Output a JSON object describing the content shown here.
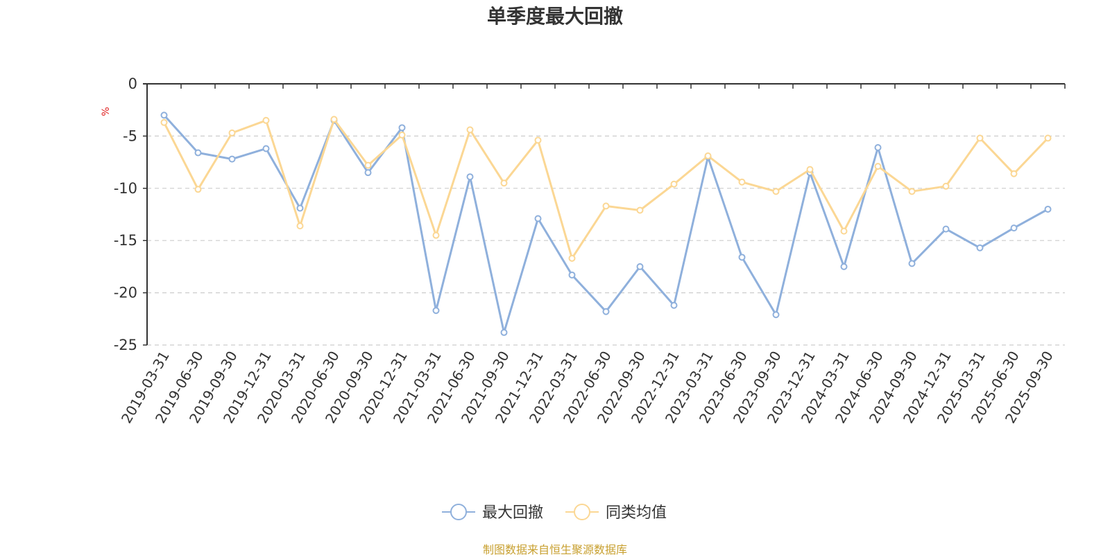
{
  "chart_data": {
    "type": "line",
    "title": "单季度最大回撤",
    "ylabel": "%",
    "xlabel": "",
    "ylim": [
      -25,
      0
    ],
    "yticks": [
      0,
      -5,
      -10,
      -15,
      -20,
      -25
    ],
    "grid": true,
    "legend_position": "bottom-center",
    "categories": [
      "2019-03-31",
      "2019-06-30",
      "2019-09-30",
      "2019-12-31",
      "2020-03-31",
      "2020-06-30",
      "2020-09-30",
      "2020-12-31",
      "2021-03-31",
      "2021-06-30",
      "2021-09-30",
      "2021-12-31",
      "2022-03-31",
      "2022-06-30",
      "2022-09-30",
      "2022-12-31",
      "2023-03-31",
      "2023-06-30",
      "2023-09-30",
      "2023-12-31",
      "2024-03-31",
      "2024-06-30",
      "2024-09-30",
      "2024-12-31",
      "2025-03-31",
      "2025-06-30",
      "2025-09-30"
    ],
    "series": [
      {
        "name": "最大回撤",
        "color": "#8fb0dc",
        "values": [
          -3.0,
          -6.6,
          -7.2,
          -6.2,
          -11.9,
          -3.5,
          -8.5,
          -4.2,
          -21.7,
          -8.9,
          -23.8,
          -12.9,
          -18.3,
          -21.8,
          -17.5,
          -21.2,
          -7.0,
          -16.6,
          -22.1,
          -8.5,
          -17.5,
          -6.1,
          -17.2,
          -13.9,
          -15.7,
          -13.8,
          -12.0
        ]
      },
      {
        "name": "同类均值",
        "color": "#fbd794",
        "values": [
          -3.7,
          -10.1,
          -4.7,
          -3.5,
          -13.6,
          -3.4,
          -7.8,
          -4.9,
          -14.5,
          -4.4,
          -9.5,
          -5.4,
          -16.7,
          -11.7,
          -12.1,
          -9.6,
          -6.9,
          -9.4,
          -10.3,
          -8.2,
          -14.1,
          -7.9,
          -10.3,
          -9.8,
          -5.2,
          -8.6,
          -5.2
        ]
      }
    ]
  },
  "source_note": "制图数据来自恒生聚源数据库",
  "colors": {
    "axis": "#333333",
    "grid": "#cccccc",
    "ylabel": "#e02020",
    "source": "#c8a030"
  }
}
